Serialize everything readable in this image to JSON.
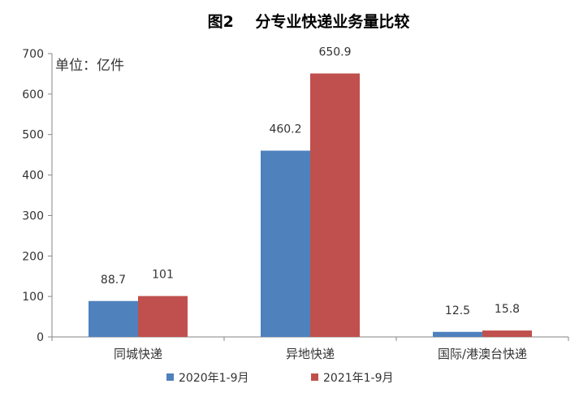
{
  "chart_data": {
    "type": "bar",
    "title": "图2    分专业快递业务量比较",
    "unit_label": "单位：亿件",
    "categories": [
      "同城快递",
      "异地快递",
      "国际/港澳台快递"
    ],
    "series": [
      {
        "name": "2020年1-9月",
        "values": [
          88.7,
          460.2,
          12.5
        ],
        "value_labels": [
          "88.7",
          "460.2",
          "12.5"
        ],
        "color": "#4F81BD"
      },
      {
        "name": "2021年1-9月",
        "values": [
          101,
          650.9,
          15.8
        ],
        "value_labels": [
          "101",
          "650.9",
          "15.8"
        ],
        "color": "#C0504D"
      }
    ],
    "ylim": [
      0,
      700
    ],
    "yticks": [
      "0",
      "100",
      "200",
      "300",
      "400",
      "500",
      "600",
      "700"
    ],
    "xlabel": "",
    "ylabel": "",
    "grid": false,
    "legend_position": "bottom"
  }
}
